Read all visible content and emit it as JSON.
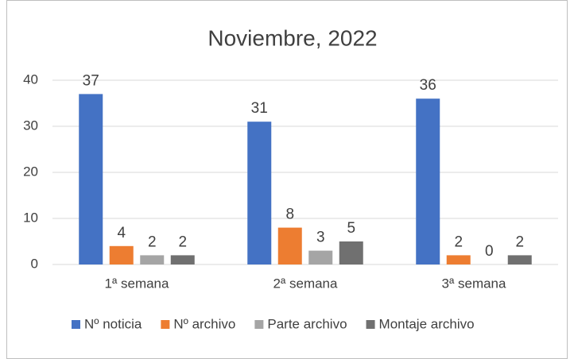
{
  "chart_data": {
    "type": "bar",
    "title": "Noviembre, 2022",
    "categories": [
      "1ª semana",
      "2ª semana",
      "3ª semana"
    ],
    "series": [
      {
        "name": "Nº noticia",
        "color": "#4472c4",
        "values": [
          37,
          31,
          36
        ]
      },
      {
        "name": "Nº archivo",
        "color": "#ed7d31",
        "values": [
          4,
          8,
          2
        ]
      },
      {
        "name": "Parte archivo",
        "color": "#a5a5a5",
        "values": [
          2,
          3,
          0
        ]
      },
      {
        "name": "Montaje archivo",
        "color": "#707070",
        "values": [
          2,
          5,
          2
        ]
      }
    ],
    "ylim": [
      0,
      40
    ],
    "yticks": [
      0,
      10,
      20,
      30,
      40
    ],
    "grid": true,
    "legend": "bottom"
  }
}
